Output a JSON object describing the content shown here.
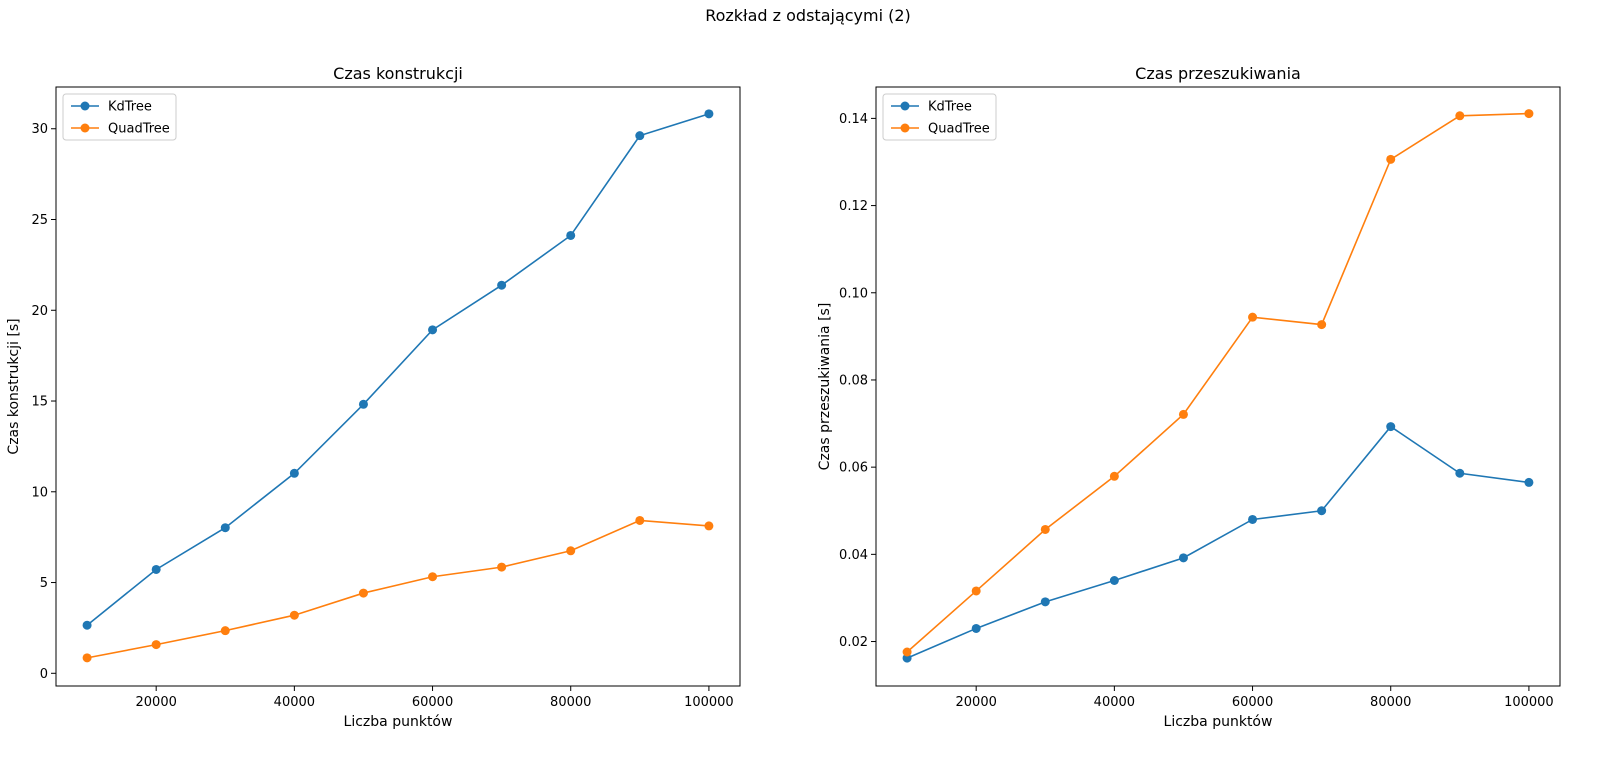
{
  "figure_title": "Rozkład z odstającymi (2)",
  "colors": {
    "KdTree": "#1f77b4",
    "QuadTree": "#ff7f0e",
    "axes": "#000000",
    "background": "#ffffff"
  },
  "chart_data": [
    {
      "type": "line",
      "title": "Czas konstrukcji",
      "xlabel": "Liczba punktów",
      "ylabel": "Czas konstrukcji [s]",
      "x": [
        10000,
        20000,
        30000,
        40000,
        50000,
        60000,
        70000,
        80000,
        90000,
        100000
      ],
      "xlim": [
        5500,
        104500
      ],
      "ylim": [
        -0.7,
        32.3
      ],
      "xticks": [
        20000,
        40000,
        60000,
        80000,
        100000
      ],
      "yticks": [
        0,
        5,
        10,
        15,
        20,
        25,
        30
      ],
      "ytick_labels": [
        "0",
        "5",
        "10",
        "15",
        "20",
        "25",
        "30"
      ],
      "legend_position": "upper-left",
      "grid": false,
      "series": [
        {
          "name": "KdTree",
          "values": [
            2.65,
            5.72,
            8.02,
            11.02,
            14.82,
            18.92,
            21.38,
            24.12,
            29.62,
            30.82
          ]
        },
        {
          "name": "QuadTree",
          "values": [
            0.85,
            1.58,
            2.35,
            3.2,
            4.42,
            5.32,
            5.85,
            6.75,
            8.42,
            8.12
          ]
        }
      ]
    },
    {
      "type": "line",
      "title": "Czas przeszukiwania",
      "xlabel": "Liczba punktów",
      "ylabel": "Czas przeszukiwania [s]",
      "x": [
        10000,
        20000,
        30000,
        40000,
        50000,
        60000,
        70000,
        80000,
        90000,
        100000
      ],
      "xlim": [
        5500,
        104500
      ],
      "ylim": [
        0.0098,
        0.1472
      ],
      "xticks": [
        20000,
        40000,
        60000,
        80000,
        100000
      ],
      "yticks": [
        0.02,
        0.04,
        0.06,
        0.08,
        0.1,
        0.12,
        0.14
      ],
      "ytick_labels": [
        "0.02",
        "0.04",
        "0.06",
        "0.08",
        "0.10",
        "0.12",
        "0.14"
      ],
      "legend_position": "upper-left",
      "grid": false,
      "series": [
        {
          "name": "KdTree",
          "values": [
            0.0162,
            0.023,
            0.0291,
            0.034,
            0.0392,
            0.048,
            0.05,
            0.0693,
            0.0586,
            0.0565
          ]
        },
        {
          "name": "QuadTree",
          "values": [
            0.0176,
            0.0316,
            0.0457,
            0.0579,
            0.0721,
            0.0944,
            0.0927,
            0.1306,
            0.1406,
            0.1411
          ]
        }
      ]
    }
  ]
}
